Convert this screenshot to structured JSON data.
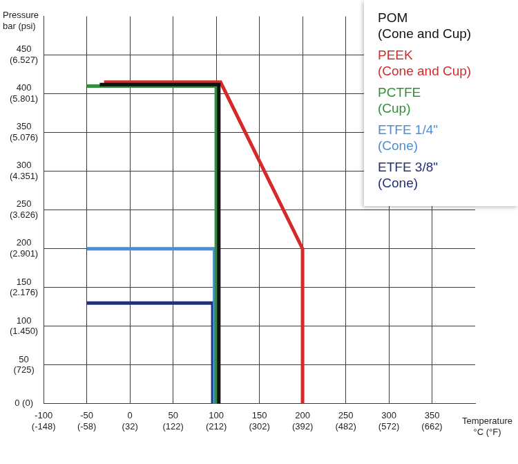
{
  "chart_data": {
    "type": "line",
    "x_label": "Temperature\n°C (°F)",
    "y_label": "Pressure\nbar (psi)",
    "xlim": [
      -100,
      400
    ],
    "xticks": [
      {
        "value": -100,
        "label": "-100\n(-148)"
      },
      {
        "value": -50,
        "label": "-50\n(-58)"
      },
      {
        "value": 0,
        "label": "0\n(32)"
      },
      {
        "value": 50,
        "label": "50\n(122)"
      },
      {
        "value": 100,
        "label": "100\n(212)"
      },
      {
        "value": 150,
        "label": "150\n(302)"
      },
      {
        "value": 200,
        "label": "200\n(392)"
      },
      {
        "value": 250,
        "label": "250\n(482)"
      },
      {
        "value": 300,
        "label": "300\n(572)"
      },
      {
        "value": 350,
        "label": "350\n(662)"
      }
    ],
    "ylim": [
      0,
      500
    ],
    "yticks": [
      {
        "value": 0,
        "label": "0 (0)"
      },
      {
        "value": 50,
        "label": "50\n(725)"
      },
      {
        "value": 100,
        "label": "100\n(1.450)"
      },
      {
        "value": 150,
        "label": "150\n(2.176)"
      },
      {
        "value": 200,
        "label": "200\n(2.901)"
      },
      {
        "value": 250,
        "label": "250\n(3.626)"
      },
      {
        "value": 300,
        "label": "300\n(4.351)"
      },
      {
        "value": 350,
        "label": "350\n(5.076)"
      },
      {
        "value": 400,
        "label": "400\n(5.801)"
      },
      {
        "value": 450,
        "label": "450\n(6.527)"
      }
    ],
    "grid": true,
    "legend": "top-right",
    "series": [
      {
        "name": "POM\n(Cone and Cup)",
        "color": "#111111",
        "x": [
          -35,
          103,
          103
        ],
        "values": [
          412,
          412,
          0
        ]
      },
      {
        "name": "PEEK\n(Cone and Cup)",
        "color": "#d42a2a",
        "x": [
          -30,
          105,
          200,
          200
        ],
        "values": [
          415,
          415,
          200,
          0
        ]
      },
      {
        "name": "PCTFE\n(Cup)",
        "color": "#2f8f3a",
        "x": [
          -50,
          100,
          100
        ],
        "values": [
          410,
          410,
          0
        ]
      },
      {
        "name": "ETFE 1/4\"\n(Cone)",
        "color": "#4a8fd6",
        "x": [
          -50,
          98,
          98
        ],
        "values": [
          200,
          200,
          0
        ]
      },
      {
        "name": "ETFE 3/8\"\n(Cone)",
        "color": "#1f2f7a",
        "x": [
          -50,
          96,
          96
        ],
        "values": [
          130,
          130,
          0
        ]
      }
    ]
  }
}
